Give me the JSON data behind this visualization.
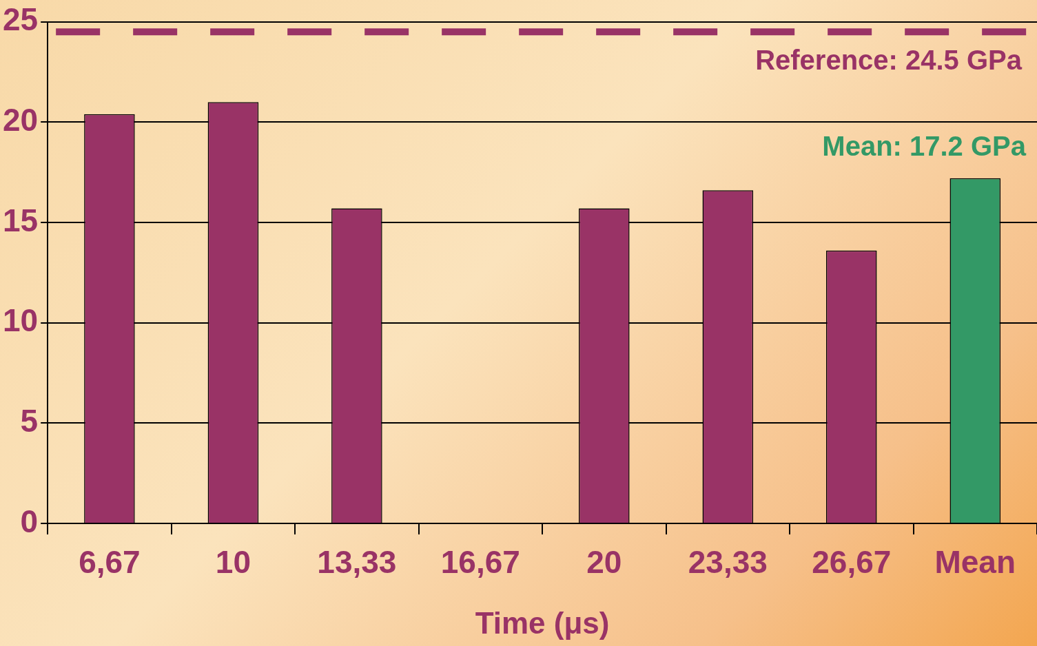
{
  "chart_data": {
    "type": "bar",
    "xlabel": "Time (μs)",
    "categories": [
      "6,67",
      "10",
      "13,33",
      "16,67",
      "20",
      "23,33",
      "26,67",
      "Mean"
    ],
    "values": [
      20.4,
      21.0,
      15.7,
      null,
      15.7,
      16.6,
      13.6,
      17.2
    ],
    "colors": [
      "#993366",
      "#993366",
      "#993366",
      "#993366",
      "#993366",
      "#993366",
      "#993366",
      "#339966"
    ],
    "ylim": [
      0,
      25
    ],
    "yticks": [
      0,
      5,
      10,
      15,
      20,
      25
    ],
    "grid": "y",
    "legend": false,
    "ref_lines": [
      {
        "axis": "y",
        "value": 24.5,
        "label": "Reference: 24.5 GPa",
        "color": "#993366",
        "line_style": "dashed"
      }
    ],
    "annotations": [
      {
        "text": "Mean: 17.2 GPa",
        "x": "Mean",
        "y": 17.2
      }
    ]
  }
}
